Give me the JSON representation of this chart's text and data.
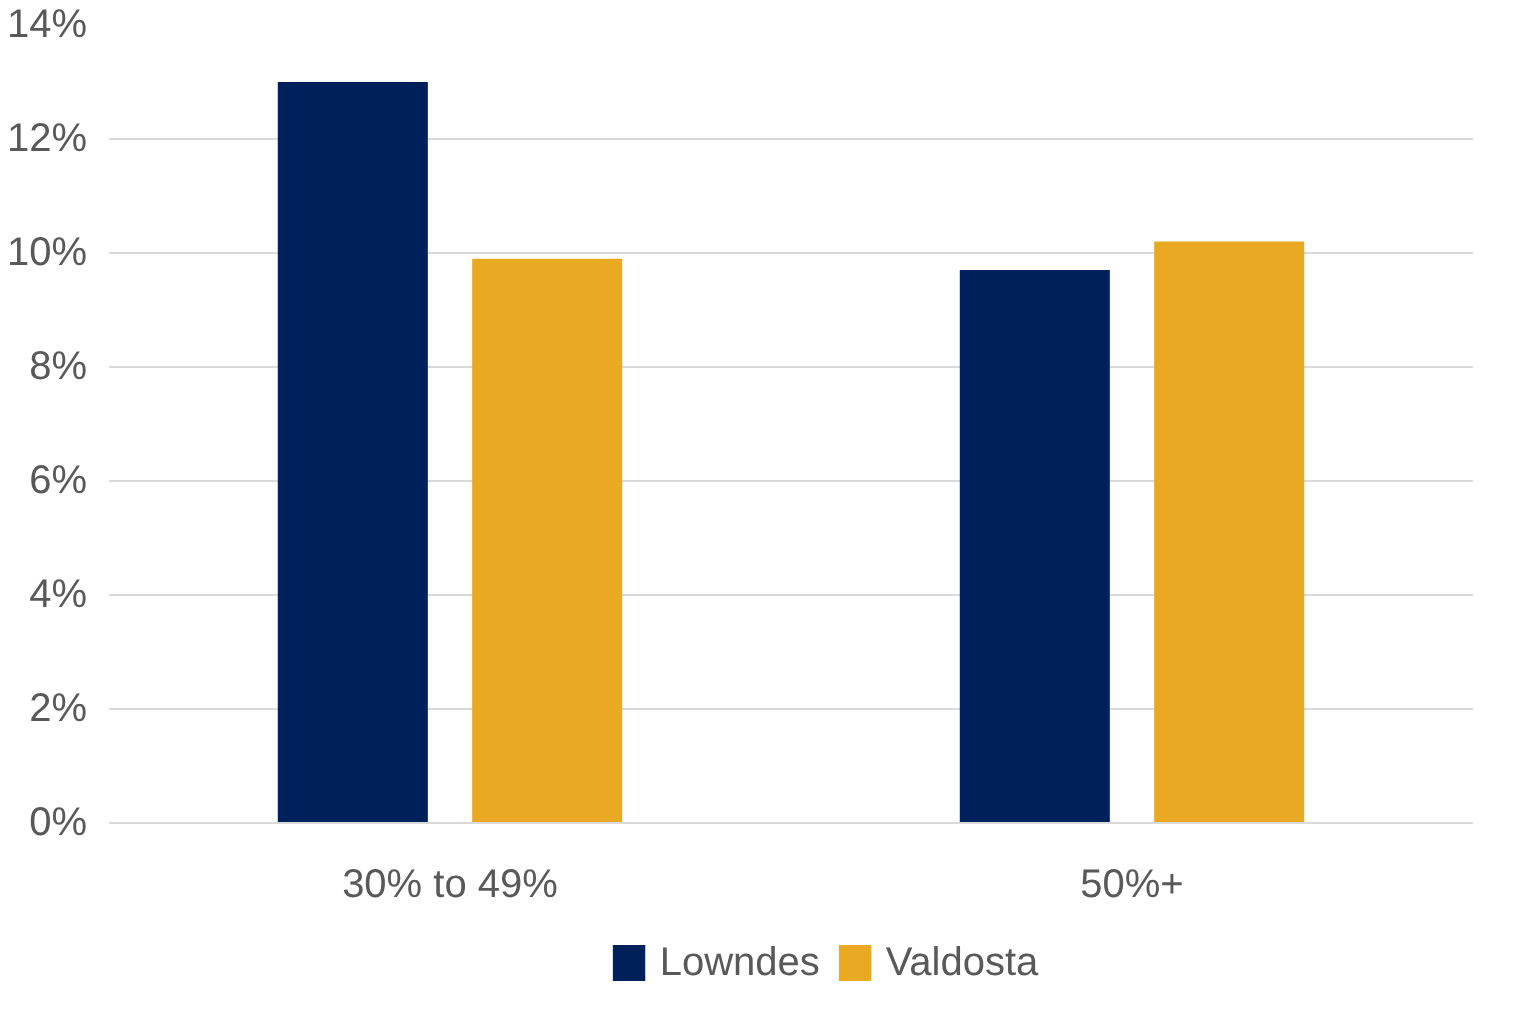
{
  "chart_data": {
    "type": "bar",
    "categories": [
      "30% to 49%",
      "50%+"
    ],
    "series": [
      {
        "name": "Lowndes",
        "color": "#00205b",
        "values": [
          13.0,
          9.7
        ]
      },
      {
        "name": "Valdosta",
        "color": "#e9a923",
        "values": [
          9.9,
          10.2
        ]
      }
    ],
    "ylim": [
      0,
      14
    ],
    "yticks": [
      {
        "value": 0,
        "label": "0%"
      },
      {
        "value": 2,
        "label": "2%"
      },
      {
        "value": 4,
        "label": "4%"
      },
      {
        "value": 6,
        "label": "6%"
      },
      {
        "value": 8,
        "label": "8%"
      },
      {
        "value": 10,
        "label": "10%"
      },
      {
        "value": 12,
        "label": "12%"
      },
      {
        "value": 14,
        "label": "14%"
      }
    ],
    "grid": "y",
    "legend": "bottom"
  }
}
